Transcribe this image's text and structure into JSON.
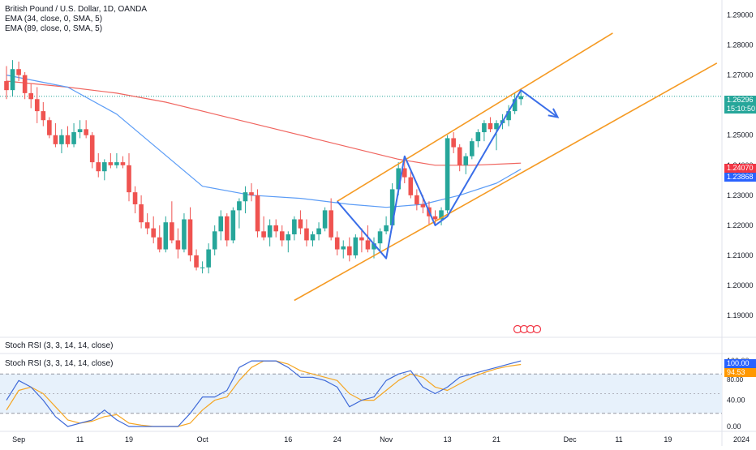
{
  "legend": {
    "title": "British Pound / U.S. Dollar, 1D, OANDA",
    "ema34": "EMA (34, close, 0, SMA, 5)",
    "ema89": "EMA (89, close, 0, SMA, 5)",
    "stoch_header": "Stoch RSI (3, 3, 14, 14, close)",
    "stoch_legend": "Stoch RSI (3, 3, 14, 14, close)"
  },
  "colors": {
    "up": "#26a69a",
    "down": "#ef5350",
    "ema34": "#5b9cf6",
    "ema89": "#f0655f",
    "channel": "#f59a23",
    "zigzag": "#3a6ee8",
    "k_line": "#3f6ad8",
    "d_line": "#f5a623",
    "stoch_band": "#e7f1fb"
  },
  "price_badges": {
    "last": {
      "value": "1.26296",
      "timer": "15:10:50",
      "color": "#26a69a"
    },
    "ema89": {
      "value": "1.24070",
      "color": "#f23645"
    },
    "ema34": {
      "value": "1.23868",
      "color": "#2962ff"
    }
  },
  "stoch_badges": {
    "k": {
      "value": "100.00",
      "color": "#2962ff"
    },
    "d": {
      "value": "94.53",
      "color": "#ff9800"
    },
    "level": "80.00"
  },
  "chart_data": [
    {
      "type": "candlestick",
      "title": "British Pound / U.S. Dollar, 1D, OANDA",
      "y_ticks": [
        "1.29000",
        "1.28000",
        "1.27000",
        "1.26000",
        "1.25000",
        "1.24000",
        "1.23000",
        "1.22000",
        "1.21000",
        "1.20000",
        "1.19000"
      ],
      "ylim": [
        1.183,
        1.295
      ],
      "x_ticks": [
        {
          "label": "Sep",
          "index": 2
        },
        {
          "label": "11",
          "index": 12
        },
        {
          "label": "19",
          "index": 20
        },
        {
          "label": "Oct",
          "index": 32
        },
        {
          "label": "16",
          "index": 46
        },
        {
          "label": "24",
          "index": 54
        },
        {
          "label": "Nov",
          "index": 62
        },
        {
          "label": "13",
          "index": 72
        },
        {
          "label": "21",
          "index": 80
        },
        {
          "label": "Dec",
          "index": 92
        },
        {
          "label": "11",
          "index": 100
        },
        {
          "label": "19",
          "index": 108
        },
        {
          "label": "2024",
          "index": 120
        }
      ],
      "candles": [
        [
          1.268,
          1.273,
          1.262,
          1.265
        ],
        [
          1.265,
          1.275,
          1.263,
          1.272
        ],
        [
          1.272,
          1.2745,
          1.268,
          1.27
        ],
        [
          1.27,
          1.271,
          1.262,
          1.264
        ],
        [
          1.264,
          1.267,
          1.259,
          1.262
        ],
        [
          1.262,
          1.266,
          1.254,
          1.258
        ],
        [
          1.258,
          1.261,
          1.253,
          1.255
        ],
        [
          1.255,
          1.256,
          1.249,
          1.25
        ],
        [
          1.25,
          1.254,
          1.246,
          1.247
        ],
        [
          1.247,
          1.252,
          1.244,
          1.25
        ],
        [
          1.25,
          1.253,
          1.246,
          1.247
        ],
        [
          1.247,
          1.254,
          1.246,
          1.251
        ],
        [
          1.251,
          1.255,
          1.249,
          1.252
        ],
        [
          1.252,
          1.255,
          1.249,
          1.25
        ],
        [
          1.25,
          1.251,
          1.239,
          1.241
        ],
        [
          1.241,
          1.244,
          1.236,
          1.238
        ],
        [
          1.238,
          1.242,
          1.235,
          1.241
        ],
        [
          1.241,
          1.244,
          1.239,
          1.24
        ],
        [
          1.24,
          1.244,
          1.239,
          1.241
        ],
        [
          1.241,
          1.243,
          1.239,
          1.24
        ],
        [
          1.24,
          1.244,
          1.228,
          1.231
        ],
        [
          1.231,
          1.233,
          1.224,
          1.227
        ],
        [
          1.227,
          1.23,
          1.219,
          1.221
        ],
        [
          1.221,
          1.224,
          1.217,
          1.219
        ],
        [
          1.219,
          1.223,
          1.214,
          1.216
        ],
        [
          1.216,
          1.22,
          1.211,
          1.212
        ],
        [
          1.212,
          1.223,
          1.211,
          1.221
        ],
        [
          1.221,
          1.228,
          1.214,
          1.215
        ],
        [
          1.215,
          1.219,
          1.209,
          1.212
        ],
        [
          1.212,
          1.224,
          1.211,
          1.222
        ],
        [
          1.222,
          1.226,
          1.208,
          1.21
        ],
        [
          1.21,
          1.212,
          1.205,
          1.206
        ],
        [
          1.206,
          1.208,
          1.204,
          1.206
        ],
        [
          1.206,
          1.214,
          1.204,
          1.212
        ],
        [
          1.212,
          1.22,
          1.21,
          1.218
        ],
        [
          1.218,
          1.225,
          1.215,
          1.223
        ],
        [
          1.223,
          1.224,
          1.213,
          1.215
        ],
        [
          1.215,
          1.226,
          1.214,
          1.225
        ],
        [
          1.225,
          1.229,
          1.219,
          1.228
        ],
        [
          1.228,
          1.233,
          1.224,
          1.231
        ],
        [
          1.231,
          1.234,
          1.228,
          1.23
        ],
        [
          1.23,
          1.232,
          1.216,
          1.218
        ],
        [
          1.218,
          1.223,
          1.215,
          1.216
        ],
        [
          1.216,
          1.222,
          1.213,
          1.22
        ],
        [
          1.22,
          1.222,
          1.216,
          1.218
        ],
        [
          1.218,
          1.22,
          1.213,
          1.215
        ],
        [
          1.215,
          1.218,
          1.211,
          1.217
        ],
        [
          1.217,
          1.223,
          1.215,
          1.222
        ],
        [
          1.222,
          1.225,
          1.217,
          1.219
        ],
        [
          1.219,
          1.222,
          1.213,
          1.215
        ],
        [
          1.215,
          1.218,
          1.213,
          1.217
        ],
        [
          1.217,
          1.221,
          1.215,
          1.219
        ],
        [
          1.219,
          1.226,
          1.218,
          1.225
        ],
        [
          1.225,
          1.229,
          1.215,
          1.216
        ],
        [
          1.216,
          1.218,
          1.21,
          1.212
        ],
        [
          1.212,
          1.215,
          1.209,
          1.213
        ],
        [
          1.213,
          1.216,
          1.208,
          1.21
        ],
        [
          1.21,
          1.217,
          1.209,
          1.216
        ],
        [
          1.216,
          1.219,
          1.211,
          1.215
        ],
        [
          1.215,
          1.22,
          1.211,
          1.212
        ],
        [
          1.212,
          1.216,
          1.209,
          1.214
        ],
        [
          1.214,
          1.219,
          1.211,
          1.218
        ],
        [
          1.218,
          1.223,
          1.217,
          1.22
        ],
        [
          1.22,
          1.234,
          1.219,
          1.232
        ],
        [
          1.232,
          1.241,
          1.23,
          1.239
        ],
        [
          1.239,
          1.243,
          1.234,
          1.236
        ],
        [
          1.236,
          1.238,
          1.229,
          1.23
        ],
        [
          1.23,
          1.232,
          1.225,
          1.227
        ],
        [
          1.227,
          1.23,
          1.224,
          1.226
        ],
        [
          1.226,
          1.228,
          1.22,
          1.223
        ],
        [
          1.223,
          1.225,
          1.22,
          1.222
        ],
        [
          1.222,
          1.226,
          1.22,
          1.225
        ],
        [
          1.225,
          1.25,
          1.224,
          1.249
        ],
        [
          1.249,
          1.251,
          1.244,
          1.246
        ],
        [
          1.246,
          1.247,
          1.238,
          1.24
        ],
        [
          1.24,
          1.244,
          1.237,
          1.243
        ],
        [
          1.243,
          1.249,
          1.242,
          1.248
        ],
        [
          1.248,
          1.252,
          1.246,
          1.251
        ],
        [
          1.251,
          1.255,
          1.248,
          1.254
        ],
        [
          1.254,
          1.256,
          1.251,
          1.252
        ],
        [
          1.252,
          1.255,
          1.245,
          1.254
        ],
        [
          1.254,
          1.257,
          1.252,
          1.255
        ],
        [
          1.255,
          1.26,
          1.253,
          1.258
        ],
        [
          1.258,
          1.264,
          1.257,
          1.262
        ],
        [
          1.262,
          1.265,
          1.26,
          1.263
        ]
      ],
      "ema34_path": [
        [
          0,
          1.27
        ],
        [
          10,
          1.266
        ],
        [
          18,
          1.257
        ],
        [
          25,
          1.245
        ],
        [
          32,
          1.233
        ],
        [
          40,
          1.23
        ],
        [
          48,
          1.229
        ],
        [
          56,
          1.227
        ],
        [
          62,
          1.226
        ],
        [
          68,
          1.227
        ],
        [
          74,
          1.23
        ],
        [
          80,
          1.234
        ],
        [
          84,
          1.2387
        ]
      ],
      "ema89_path": [
        [
          0,
          1.268
        ],
        [
          10,
          1.266
        ],
        [
          18,
          1.264
        ],
        [
          26,
          1.261
        ],
        [
          34,
          1.257
        ],
        [
          42,
          1.253
        ],
        [
          50,
          1.249
        ],
        [
          58,
          1.245
        ],
        [
          64,
          1.242
        ],
        [
          70,
          1.24
        ],
        [
          76,
          1.24
        ],
        [
          84,
          1.2407
        ]
      ],
      "channel_upper": [
        [
          54,
          1.228
        ],
        [
          99,
          1.284
        ]
      ],
      "channel_lower": [
        [
          47,
          1.195
        ],
        [
          116,
          1.274
        ]
      ],
      "zigzag": [
        [
          54,
          1.228
        ],
        [
          62,
          1.209
        ],
        [
          65,
          1.243
        ],
        [
          70,
          1.22
        ],
        [
          72,
          1.223
        ],
        [
          84,
          1.265
        ],
        [
          90,
          1.256
        ]
      ],
      "last_price_line": 1.26296
    },
    {
      "type": "line",
      "title": "Stoch RSI (3, 3, 14, 14, close)",
      "y_ticks": [
        "100.00",
        "80.00",
        "40.00",
        "0.00"
      ],
      "ylim": [
        -5,
        110
      ],
      "band": [
        20,
        80
      ],
      "midline": 50,
      "series": [
        {
          "values": [
            [
              0,
              40
            ],
            [
              2,
              70
            ],
            [
              4,
              60
            ],
            [
              6,
              40
            ],
            [
              8,
              15
            ],
            [
              10,
              0
            ],
            [
              12,
              5
            ],
            [
              14,
              10
            ],
            [
              16,
              25
            ],
            [
              18,
              10
            ],
            [
              20,
              0
            ],
            [
              22,
              0
            ],
            [
              24,
              0
            ],
            [
              26,
              0
            ],
            [
              28,
              0
            ],
            [
              30,
              20
            ],
            [
              32,
              45
            ],
            [
              34,
              45
            ],
            [
              36,
              55
            ],
            [
              38,
              90
            ],
            [
              40,
              100
            ],
            [
              42,
              100
            ],
            [
              44,
              100
            ],
            [
              46,
              90
            ],
            [
              48,
              75
            ],
            [
              50,
              75
            ],
            [
              52,
              70
            ],
            [
              54,
              60
            ],
            [
              56,
              30
            ],
            [
              58,
              40
            ],
            [
              60,
              45
            ],
            [
              62,
              70
            ],
            [
              64,
              80
            ],
            [
              66,
              85
            ],
            [
              68,
              60
            ],
            [
              70,
              50
            ],
            [
              72,
              60
            ],
            [
              74,
              75
            ],
            [
              76,
              80
            ],
            [
              78,
              85
            ],
            [
              80,
              90
            ],
            [
              82,
              95
            ],
            [
              84,
              100
            ]
          ]
        },
        {
          "values": [
            [
              0,
              25
            ],
            [
              2,
              55
            ],
            [
              4,
              60
            ],
            [
              6,
              50
            ],
            [
              8,
              30
            ],
            [
              10,
              10
            ],
            [
              12,
              5
            ],
            [
              14,
              8
            ],
            [
              16,
              15
            ],
            [
              18,
              18
            ],
            [
              20,
              5
            ],
            [
              22,
              2
            ],
            [
              24,
              0
            ],
            [
              26,
              0
            ],
            [
              28,
              0
            ],
            [
              30,
              5
            ],
            [
              32,
              25
            ],
            [
              34,
              40
            ],
            [
              36,
              45
            ],
            [
              38,
              70
            ],
            [
              40,
              90
            ],
            [
              42,
              100
            ],
            [
              44,
              100
            ],
            [
              46,
              95
            ],
            [
              48,
              85
            ],
            [
              50,
              80
            ],
            [
              52,
              75
            ],
            [
              54,
              70
            ],
            [
              56,
              50
            ],
            [
              58,
              40
            ],
            [
              60,
              40
            ],
            [
              62,
              55
            ],
            [
              64,
              70
            ],
            [
              66,
              80
            ],
            [
              68,
              75
            ],
            [
              70,
              60
            ],
            [
              72,
              55
            ],
            [
              74,
              65
            ],
            [
              76,
              75
            ],
            [
              78,
              82
            ],
            [
              80,
              88
            ],
            [
              82,
              92
            ],
            [
              84,
              94.53
            ]
          ]
        }
      ]
    }
  ]
}
